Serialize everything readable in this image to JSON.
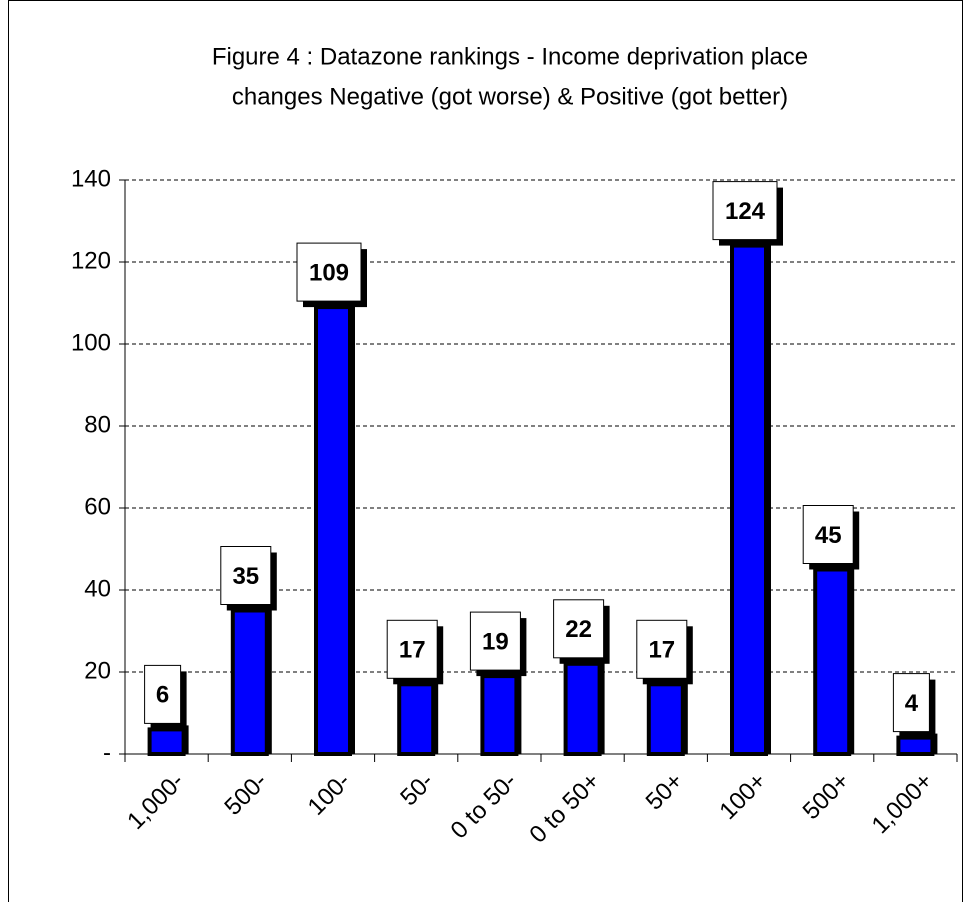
{
  "chart_data": {
    "type": "bar",
    "title": [
      "Figure 4 : Datazone rankings - Income deprivation place",
      "changes Negative (got worse) & Positive (got better)"
    ],
    "categories": [
      "1,000-",
      "500-",
      "100-",
      "50-",
      "0 to 50-",
      "0 to 50+",
      "50+",
      "100+",
      "500+",
      "1,000+"
    ],
    "values": [
      6,
      35,
      109,
      17,
      19,
      22,
      17,
      124,
      45,
      4
    ],
    "color": "#0000ff",
    "ylim": [
      0,
      140
    ],
    "yticks": [
      {
        "value": 0,
        "label": "-"
      },
      20,
      40,
      60,
      80,
      100,
      120,
      140
    ],
    "grid": true
  }
}
